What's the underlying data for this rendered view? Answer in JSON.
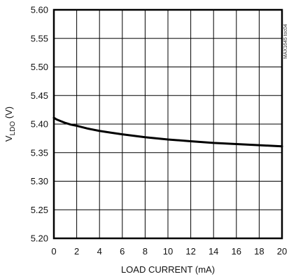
{
  "chart_data": {
    "type": "line",
    "title": "",
    "xlabel": "LOAD CURRENT (mA)",
    "ylabel": {
      "prefix": "V",
      "subscript": "LDO",
      "suffix": " (V)"
    },
    "side_note": "MAX1645 toc04",
    "xlim": [
      0,
      20
    ],
    "ylim": [
      5.2,
      5.6
    ],
    "x_ticks": [
      "0",
      "2",
      "4",
      "6",
      "8",
      "10",
      "12",
      "14",
      "16",
      "18",
      "20"
    ],
    "y_ticks": [
      "5.60",
      "5.55",
      "5.50",
      "5.45",
      "5.40",
      "5.35",
      "5.30",
      "5.25",
      "5.20"
    ],
    "grid": true,
    "series": [
      {
        "x": [
          0,
          0.25,
          0.5,
          1,
          1.5,
          2,
          3,
          4,
          5,
          6,
          8,
          10,
          12,
          14,
          16,
          18,
          20
        ],
        "y": [
          5.411,
          5.408,
          5.406,
          5.402,
          5.399,
          5.397,
          5.392,
          5.388,
          5.385,
          5.382,
          5.377,
          5.373,
          5.37,
          5.367,
          5.365,
          5.363,
          5.361
        ],
        "color": "#000000"
      }
    ]
  }
}
